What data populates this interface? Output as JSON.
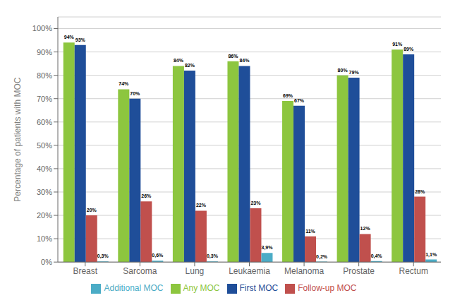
{
  "chart_data": {
    "type": "bar",
    "categories": [
      "Breast",
      "Sarcoma",
      "Lung",
      "Leukaemia",
      "Melanoma",
      "Prostate",
      "Rectum"
    ],
    "series": [
      {
        "name": "Any MOC",
        "color": "#8DC63F",
        "values": [
          94,
          74,
          84,
          86,
          69,
          80,
          91
        ],
        "value_labels": [
          "94%",
          "74%",
          "84%",
          "86%",
          "69%",
          "80%",
          "91%"
        ]
      },
      {
        "name": "First MOC",
        "color": "#1F4E99",
        "values": [
          93,
          70,
          82,
          84,
          67,
          79,
          89
        ],
        "value_labels": [
          "93%",
          "70%",
          "82%",
          "84%",
          "67%",
          "79%",
          "89%"
        ]
      },
      {
        "name": "Follow-up MOC",
        "color": "#C0504D",
        "values": [
          20,
          26,
          22,
          23,
          11,
          12,
          28
        ],
        "value_labels": [
          "20%",
          "26%",
          "22%",
          "23%",
          "11%",
          "12%",
          "28%"
        ]
      },
      {
        "name": "Additional MOC",
        "color": "#4BACC6",
        "values": [
          0.3,
          0.6,
          0.3,
          3.9,
          0.2,
          0.4,
          1.1
        ],
        "value_labels": [
          "0,3%",
          "0,6%",
          "0,3%",
          "3,9%",
          "0,2%",
          "0,4%",
          "1,1%"
        ]
      }
    ],
    "ylabel": "Percentage of patients with MOC",
    "ylim": [
      0,
      105
    ],
    "yticks": [
      {
        "value": 0,
        "label": "0%"
      },
      {
        "value": 10,
        "label": "10%"
      },
      {
        "value": 20,
        "label": "20%"
      },
      {
        "value": 30,
        "label": "30%"
      },
      {
        "value": 40,
        "label": "40%"
      },
      {
        "value": 50,
        "label": "50%"
      },
      {
        "value": 60,
        "label": "60%"
      },
      {
        "value": 70,
        "label": "70%"
      },
      {
        "value": 80,
        "label": "80%"
      },
      {
        "value": 90,
        "label": "90%"
      },
      {
        "value": 100,
        "label": "100%"
      }
    ],
    "grid": true,
    "legend": "bottom",
    "data_labels": true
  }
}
